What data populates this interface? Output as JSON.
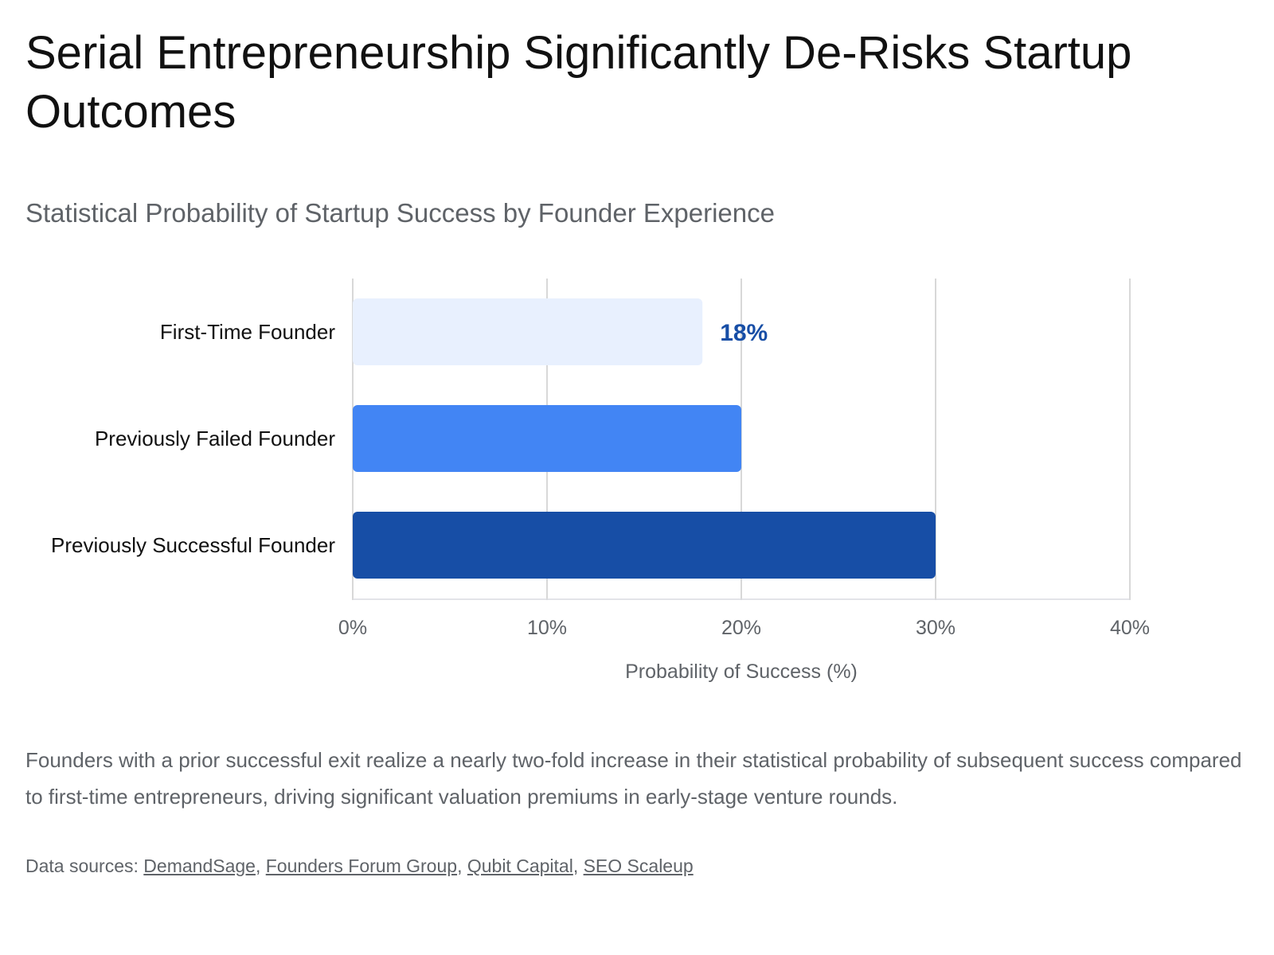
{
  "title": "Serial Entrepreneurship Significantly De-Risks Startup Outcomes",
  "description": "Founders with a prior successful exit realize a nearly two-fold increase in their statistical probability of subsequent success compared to first-time entrepreneurs, driving significant valuation premiums in early-stage venture rounds.",
  "sources": {
    "prefix": "Data sources: ",
    "links": [
      "DemandSage",
      "Founders Forum Group",
      "Qubit Capital",
      "SEO Scaleup"
    ]
  },
  "colors": {
    "label_highlight": "#174ea6",
    "grid": "#cccccc"
  },
  "chart_data": {
    "type": "bar",
    "orientation": "horizontal",
    "title": "Statistical Probability of Startup Success by Founder Experience",
    "xlabel": "Probability of Success (%)",
    "ylabel": "",
    "categories": [
      "First-Time Founder",
      "Previously Failed Founder",
      "Previously Successful Founder"
    ],
    "values": [
      18,
      20,
      30
    ],
    "bar_colors": [
      "#e8f0fe",
      "#4285f4",
      "#174ea6"
    ],
    "xlim": [
      0,
      40
    ],
    "xticks": [
      0,
      10,
      20,
      30,
      40
    ],
    "tick_labels": [
      "0%",
      "10%",
      "20%",
      "30%",
      "40%"
    ],
    "data_labels": [
      {
        "category": "First-Time Founder",
        "text": "18%"
      }
    ],
    "grid": true,
    "legend": "none"
  }
}
